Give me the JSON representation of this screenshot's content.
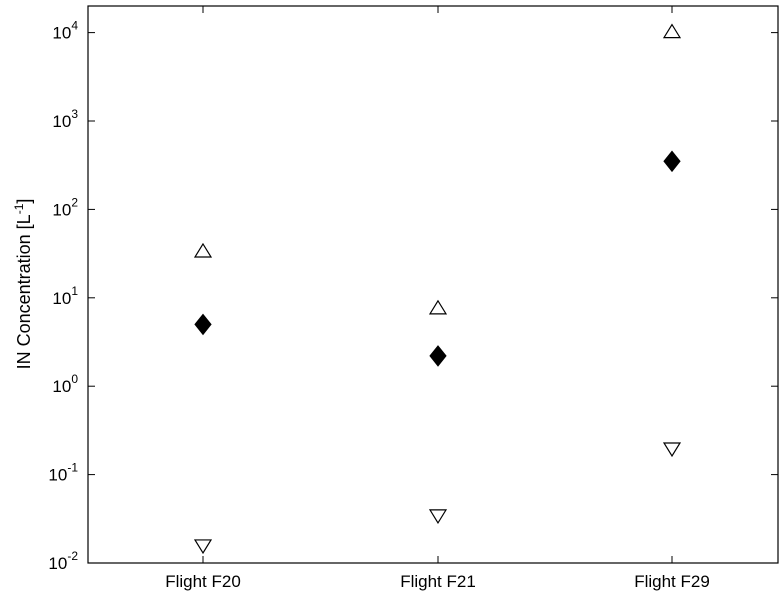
{
  "chart_data": {
    "type": "scatter",
    "title": "",
    "ylabel": "IN Concentration [L",
    "ylabel_sup": "-1",
    "ylabel_close": "]",
    "xlabel": "",
    "y_scale": "log",
    "ylim": [
      0.01,
      20000
    ],
    "categories": [
      "Flight F20",
      "Flight F21",
      "Flight F29"
    ],
    "y_tick_base": "10",
    "y_ticks": [
      {
        "value": 0.01,
        "exp": "-2"
      },
      {
        "value": 0.1,
        "exp": "-1"
      },
      {
        "value": 1,
        "exp": "0"
      },
      {
        "value": 10,
        "exp": "1"
      },
      {
        "value": 100,
        "exp": "2"
      },
      {
        "value": 1000,
        "exp": "3"
      },
      {
        "value": 10000,
        "exp": "4"
      }
    ],
    "grid": false,
    "legend": "none",
    "series": [
      {
        "marker": "open-triangle-up",
        "values": [
          33,
          7.5,
          10000
        ]
      },
      {
        "marker": "filled-diamond",
        "values": [
          5,
          2.2,
          350
        ]
      },
      {
        "marker": "open-triangle-down",
        "values": [
          0.016,
          0.035,
          0.2
        ]
      }
    ],
    "colors": {
      "axis": "#000000",
      "marker": "#000000",
      "background": "#ffffff"
    }
  }
}
